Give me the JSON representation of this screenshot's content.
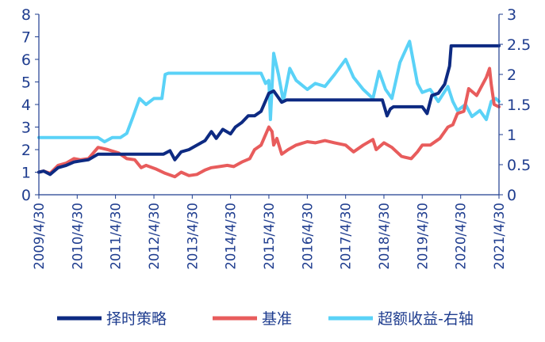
{
  "chart_data": {
    "type": "line",
    "title": "",
    "xlabel": "",
    "ylabel": "",
    "y_left": {
      "min": 0,
      "max": 8,
      "ticks": [
        0,
        1,
        2,
        3,
        4,
        5,
        6,
        7,
        8
      ]
    },
    "y_right": {
      "min": 0,
      "max": 3,
      "ticks": [
        "0",
        "0.5",
        "1",
        "1.5",
        "2",
        "2.5",
        "3"
      ]
    },
    "x_range": [
      "2009/4/30",
      "2021/4/30"
    ],
    "x_ticks": [
      "2009/4/30",
      "2010/4/30",
      "2011/4/30",
      "2012/4/30",
      "2013/4/30",
      "2014/4/30",
      "2015/4/30",
      "2016/4/30",
      "2017/4/30",
      "2018/4/30",
      "2019/4/30",
      "2020/4/30",
      "2021/4/30"
    ],
    "grid": false,
    "legend_position": "bottom",
    "colors": {
      "axis": "#1f3d8f",
      "timing": "#0d2a82",
      "benchmark": "#e85c5c",
      "excess": "#5ad2f7"
    },
    "series": [
      {
        "name": "择时策略",
        "axis": "left",
        "color": "#0d2a82",
        "points": [
          [
            "2009/4/30",
            1.0
          ],
          [
            "2009/6/15",
            1.05
          ],
          [
            "2009/8/15",
            0.9
          ],
          [
            "2009/10/30",
            1.2
          ],
          [
            "2010/1/15",
            1.3
          ],
          [
            "2010/3/30",
            1.45
          ],
          [
            "2010/5/30",
            1.5
          ],
          [
            "2010/8/15",
            1.55
          ],
          [
            "2010/11/15",
            1.8
          ],
          [
            "2011/2/15",
            1.8
          ],
          [
            "2011/5/30",
            1.8
          ],
          [
            "2011/9/30",
            1.8
          ],
          [
            "2012/1/15",
            1.8
          ],
          [
            "2012/4/30",
            1.8
          ],
          [
            "2012/7/30",
            1.8
          ],
          [
            "2012/9/30",
            1.95
          ],
          [
            "2012/11/15",
            1.55
          ],
          [
            "2013/1/15",
            1.9
          ],
          [
            "2013/3/30",
            2.0
          ],
          [
            "2013/6/15",
            2.2
          ],
          [
            "2013/8/30",
            2.4
          ],
          [
            "2013/10/30",
            2.8
          ],
          [
            "2013/12/15",
            2.5
          ],
          [
            "2014/2/15",
            2.9
          ],
          [
            "2014/4/30",
            2.7
          ],
          [
            "2014/6/15",
            3.0
          ],
          [
            "2014/8/15",
            3.2
          ],
          [
            "2014/10/15",
            3.5
          ],
          [
            "2014/12/15",
            3.5
          ],
          [
            "2015/2/15",
            3.7
          ],
          [
            "2015/4/30",
            4.5
          ],
          [
            "2015/6/15",
            4.6
          ],
          [
            "2015/8/30",
            4.1
          ],
          [
            "2015/10/15",
            4.2
          ],
          [
            "2016/4/30",
            4.2
          ],
          [
            "2017/4/30",
            4.2
          ],
          [
            "2018/1/15",
            4.2
          ],
          [
            "2018/4/15",
            4.2
          ],
          [
            "2018/5/30",
            3.5
          ],
          [
            "2018/6/30",
            3.8
          ],
          [
            "2018/7/30",
            3.9
          ],
          [
            "2019/4/30",
            3.9
          ],
          [
            "2019/6/15",
            3.6
          ],
          [
            "2019/7/30",
            4.4
          ],
          [
            "2019/9/30",
            4.5
          ],
          [
            "2019/11/30",
            4.9
          ],
          [
            "2020/1/15",
            5.7
          ],
          [
            "2020/1/30",
            6.6
          ],
          [
            "2020/4/30",
            6.6
          ],
          [
            "2020/12/30",
            6.6
          ],
          [
            "2021/4/30",
            6.6
          ]
        ]
      },
      {
        "name": "基准",
        "axis": "left",
        "color": "#e85c5c",
        "points": [
          [
            "2009/4/30",
            1.0
          ],
          [
            "2009/6/15",
            1.05
          ],
          [
            "2009/8/15",
            0.95
          ],
          [
            "2009/10/30",
            1.3
          ],
          [
            "2010/1/15",
            1.4
          ],
          [
            "2010/3/30",
            1.6
          ],
          [
            "2010/5/30",
            1.55
          ],
          [
            "2010/8/15",
            1.6
          ],
          [
            "2010/11/15",
            2.1
          ],
          [
            "2011/2/15",
            2.0
          ],
          [
            "2011/5/30",
            1.85
          ],
          [
            "2011/8/15",
            1.6
          ],
          [
            "2011/10/30",
            1.55
          ],
          [
            "2011/12/30",
            1.2
          ],
          [
            "2012/2/15",
            1.3
          ],
          [
            "2012/5/15",
            1.15
          ],
          [
            "2012/8/15",
            0.95
          ],
          [
            "2012/11/15",
            0.8
          ],
          [
            "2013/1/15",
            1.0
          ],
          [
            "2013/3/30",
            0.85
          ],
          [
            "2013/6/15",
            0.9
          ],
          [
            "2013/8/30",
            1.1
          ],
          [
            "2013/10/30",
            1.2
          ],
          [
            "2014/1/15",
            1.25
          ],
          [
            "2014/3/30",
            1.3
          ],
          [
            "2014/5/30",
            1.25
          ],
          [
            "2014/8/15",
            1.45
          ],
          [
            "2014/10/30",
            1.6
          ],
          [
            "2014/12/15",
            2.0
          ],
          [
            "2015/2/15",
            2.2
          ],
          [
            "2015/4/30",
            3.0
          ],
          [
            "2015/5/30",
            2.8
          ],
          [
            "2015/6/15",
            2.2
          ],
          [
            "2015/7/15",
            2.5
          ],
          [
            "2015/8/30",
            1.8
          ],
          [
            "2015/10/30",
            2.0
          ],
          [
            "2016/1/15",
            2.2
          ],
          [
            "2016/4/30",
            2.35
          ],
          [
            "2016/7/15",
            2.3
          ],
          [
            "2016/10/15",
            2.4
          ],
          [
            "2017/1/15",
            2.3
          ],
          [
            "2017/4/30",
            2.2
          ],
          [
            "2017/7/15",
            1.9
          ],
          [
            "2017/10/15",
            2.2
          ],
          [
            "2018/1/15",
            2.45
          ],
          [
            "2018/2/15",
            2.0
          ],
          [
            "2018/4/30",
            2.3
          ],
          [
            "2018/7/15",
            2.1
          ],
          [
            "2018/10/15",
            1.7
          ],
          [
            "2019/1/15",
            1.6
          ],
          [
            "2019/3/15",
            1.9
          ],
          [
            "2019/4/30",
            2.2
          ],
          [
            "2019/7/15",
            2.2
          ],
          [
            "2019/10/15",
            2.5
          ],
          [
            "2019/12/30",
            3.0
          ],
          [
            "2020/2/15",
            3.1
          ],
          [
            "2020/3/30",
            3.6
          ],
          [
            "2020/5/30",
            3.7
          ],
          [
            "2020/7/15",
            4.7
          ],
          [
            "2020/9/30",
            4.4
          ],
          [
            "2020/12/30",
            5.2
          ],
          [
            "2021/1/30",
            5.6
          ],
          [
            "2021/2/15",
            4.9
          ],
          [
            "2021/3/15",
            4.0
          ],
          [
            "2021/4/30",
            3.9
          ]
        ]
      },
      {
        "name": "超额收益-右轴",
        "axis": "right",
        "color": "#5ad2f7",
        "points": [
          [
            "2009/4/30",
            0.95
          ],
          [
            "2010/4/30",
            0.95
          ],
          [
            "2010/11/15",
            0.95
          ],
          [
            "2011/1/15",
            0.88
          ],
          [
            "2011/3/30",
            0.95
          ],
          [
            "2011/6/15",
            0.95
          ],
          [
            "2011/8/15",
            1.02
          ],
          [
            "2011/10/15",
            1.3
          ],
          [
            "2011/12/15",
            1.6
          ],
          [
            "2012/2/15",
            1.5
          ],
          [
            "2012/4/30",
            1.6
          ],
          [
            "2012/7/15",
            1.6
          ],
          [
            "2012/8/15",
            2.0
          ],
          [
            "2012/9/15",
            2.02
          ],
          [
            "2013/4/30",
            2.02
          ],
          [
            "2014/4/30",
            2.02
          ],
          [
            "2015/2/15",
            2.02
          ],
          [
            "2015/3/30",
            1.85
          ],
          [
            "2015/4/30",
            1.9
          ],
          [
            "2015/5/15",
            1.25
          ],
          [
            "2015/6/15",
            2.35
          ],
          [
            "2015/7/30",
            2.0
          ],
          [
            "2015/9/15",
            1.55
          ],
          [
            "2015/11/15",
            2.1
          ],
          [
            "2016/1/15",
            1.9
          ],
          [
            "2016/4/30",
            1.75
          ],
          [
            "2016/7/15",
            1.85
          ],
          [
            "2016/10/15",
            1.8
          ],
          [
            "2017/1/15",
            2.0
          ],
          [
            "2017/4/30",
            2.25
          ],
          [
            "2017/7/15",
            1.95
          ],
          [
            "2017/10/15",
            1.75
          ],
          [
            "2018/1/15",
            1.6
          ],
          [
            "2018/3/15",
            2.05
          ],
          [
            "2018/5/15",
            1.75
          ],
          [
            "2018/7/15",
            1.6
          ],
          [
            "2018/9/30",
            2.2
          ],
          [
            "2018/12/30",
            2.55
          ],
          [
            "2019/3/15",
            1.85
          ],
          [
            "2019/4/30",
            1.7
          ],
          [
            "2019/7/15",
            1.75
          ],
          [
            "2019/9/30",
            1.55
          ],
          [
            "2019/12/30",
            1.8
          ],
          [
            "2020/2/15",
            1.55
          ],
          [
            "2020/3/30",
            1.4
          ],
          [
            "2020/6/15",
            1.5
          ],
          [
            "2020/8/15",
            1.3
          ],
          [
            "2020/10/30",
            1.4
          ],
          [
            "2020/12/30",
            1.25
          ],
          [
            "2021/2/15",
            1.55
          ],
          [
            "2021/3/30",
            1.6
          ],
          [
            "2021/4/30",
            1.55
          ]
        ]
      }
    ]
  }
}
